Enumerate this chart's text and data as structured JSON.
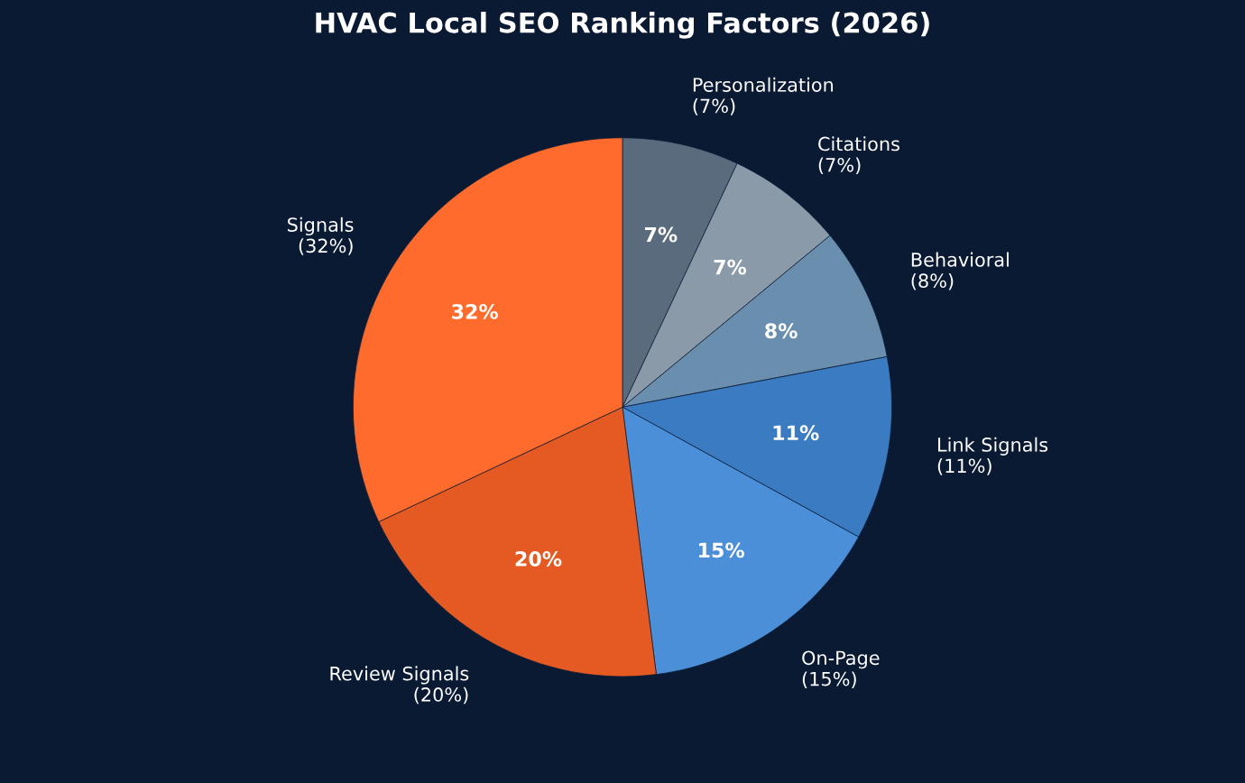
{
  "chart_data": {
    "type": "pie",
    "title": "HVAC Local SEO Ranking Factors (2026)",
    "categories": [
      "Personalization\n(7%)",
      "Citations\n(7%)",
      "Behavioral\n(8%)",
      "Link Signals\n(11%)",
      "On-Page\n(15%)",
      "Review Signals\n(20%)",
      "Signals\n(32%)"
    ],
    "values": [
      7,
      7,
      8,
      11,
      15,
      20,
      32
    ],
    "colors": [
      "#5a6b7d",
      "#8a9aa8",
      "#6a8eae",
      "#3a7bc2",
      "#4a8fd8",
      "#e55a22",
      "#ff6b2c"
    ],
    "value_labels": [
      "7%",
      "7%",
      "8%",
      "11%",
      "15%",
      "20%",
      "32%"
    ],
    "legend": false
  }
}
